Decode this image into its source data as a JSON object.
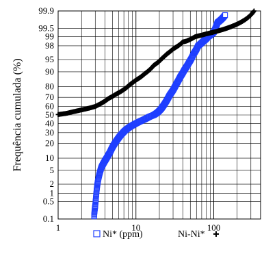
{
  "chart_data": {
    "type": "scatter",
    "xlabel": "",
    "ylabel": "Frequência cumulada (%)",
    "x_scale": "log",
    "y_scale": "probability",
    "xlim": [
      1,
      400
    ],
    "ylim": [
      0.1,
      99.9
    ],
    "grid": true,
    "x_ticks": [
      "1",
      "10",
      "100"
    ],
    "y_ticks": [
      "0.1",
      "0.5",
      "1",
      "2",
      "5",
      "10",
      "20",
      "30",
      "40",
      "50",
      "60",
      "70",
      "80",
      "90",
      "95",
      "98",
      "99",
      "99.5",
      "99.9"
    ],
    "legend": {
      "position": "bottom-center",
      "entries": [
        {
          "label": "Ni* (ppm)",
          "marker": "square",
          "color": "#1f3fff"
        },
        {
          "label": "Ni-Ni*",
          "marker": "plus",
          "color": "#000000"
        }
      ]
    },
    "series": [
      {
        "name": "Ni* (ppm)",
        "marker": "square",
        "color": "#1f3fff",
        "points": [
          [
            2.9,
            0.13
          ],
          [
            3.0,
            0.35
          ],
          [
            3.05,
            0.6
          ],
          [
            3.1,
            1.0
          ],
          [
            3.15,
            1.5
          ],
          [
            3.25,
            2.5
          ],
          [
            3.4,
            4
          ],
          [
            3.6,
            6
          ],
          [
            3.9,
            8
          ],
          [
            4.2,
            10
          ],
          [
            4.6,
            13
          ],
          [
            5.0,
            17
          ],
          [
            5.6,
            22
          ],
          [
            6.3,
            27
          ],
          [
            7.2,
            32
          ],
          [
            8.3,
            36
          ],
          [
            9.5,
            39
          ],
          [
            11,
            42
          ],
          [
            13,
            45
          ],
          [
            15,
            48
          ],
          [
            17,
            50
          ],
          [
            19,
            53
          ],
          [
            21,
            57
          ],
          [
            23,
            62
          ],
          [
            25,
            67
          ],
          [
            27,
            72
          ],
          [
            30,
            77
          ],
          [
            33,
            82
          ],
          [
            37,
            87
          ],
          [
            42,
            91
          ],
          [
            48,
            94
          ],
          [
            55,
            96.5
          ],
          [
            63,
            98
          ],
          [
            72,
            98.5
          ],
          [
            85,
            99
          ],
          [
            100,
            99.3
          ],
          [
            108,
            99.6
          ],
          [
            112,
            99.7
          ],
          [
            140,
            99.85
          ]
        ]
      },
      {
        "name": "Ni-Ni*",
        "marker": "plus",
        "color": "#000000",
        "points": [
          [
            1.0,
            50.5
          ],
          [
            1.3,
            52
          ],
          [
            1.6,
            54
          ],
          [
            2.0,
            56
          ],
          [
            2.5,
            58
          ],
          [
            3.0,
            60
          ],
          [
            3.5,
            63
          ],
          [
            4.0,
            66
          ],
          [
            4.5,
            69
          ],
          [
            5.0,
            71
          ],
          [
            5.5,
            73
          ],
          [
            6.5,
            76
          ],
          [
            7.5,
            79
          ],
          [
            8.5,
            82
          ],
          [
            10,
            85
          ],
          [
            11.5,
            87
          ],
          [
            13,
            89
          ],
          [
            15,
            91
          ],
          [
            17,
            93
          ],
          [
            19,
            94
          ],
          [
            22,
            95.5
          ],
          [
            25,
            96.5
          ],
          [
            30,
            97.5
          ],
          [
            38,
            98.3
          ],
          [
            40,
            98.5
          ],
          [
            45,
            98.6
          ],
          [
            58,
            99.0
          ],
          [
            80,
            99.2
          ],
          [
            330,
            99.9
          ]
        ]
      }
    ]
  }
}
